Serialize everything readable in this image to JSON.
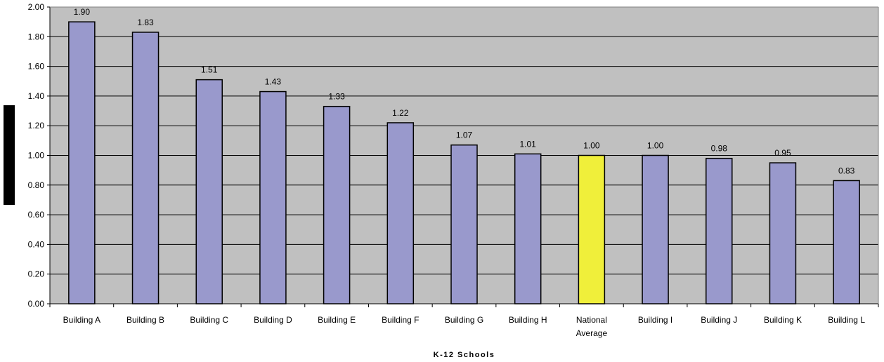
{
  "chart_data": {
    "type": "bar",
    "title": "",
    "xlabel": "K-12 Schools",
    "ylabel": "",
    "ylim": [
      0,
      2
    ],
    "ytick_step": 0.2,
    "ytick_labels": [
      "0.00",
      "0.20",
      "0.40",
      "0.60",
      "0.80",
      "1.00",
      "1.20",
      "1.40",
      "1.60",
      "1.80",
      "2.00"
    ],
    "grid": true,
    "legend": "none",
    "categories": [
      "Building A",
      "Building B",
      "Building C",
      "Building D",
      "Building E",
      "Building F",
      "Building G",
      "Building H",
      "National Average",
      "Building I",
      "Building J",
      "Building K",
      "Building L"
    ],
    "values": [
      1.9,
      1.83,
      1.51,
      1.43,
      1.33,
      1.22,
      1.07,
      1.01,
      1.0,
      1.0,
      0.98,
      0.95,
      0.83
    ],
    "value_labels": [
      "1.90",
      "1.83",
      "1.51",
      "1.43",
      "1.33",
      "1.22",
      "1.07",
      "1.01",
      "1.00",
      "1.00",
      "0.98",
      "0.95",
      "0.83"
    ],
    "highlight_category": "National Average",
    "colors": {
      "bar": "#9999cc",
      "highlight_bar": "#f0ef3a",
      "plot_background": "#c0c0c0",
      "gridline": "#000000"
    }
  }
}
